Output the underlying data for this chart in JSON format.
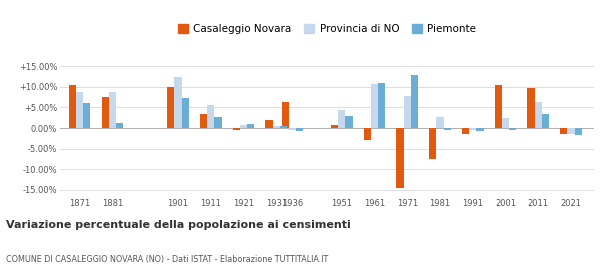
{
  "years": [
    1871,
    1881,
    1901,
    1911,
    1921,
    1931,
    1936,
    1951,
    1961,
    1971,
    1981,
    1991,
    2001,
    2011,
    2021
  ],
  "casaleggio": [
    10.5,
    7.5,
    10.0,
    3.5,
    -0.5,
    2.0,
    6.3,
    0.7,
    -3.0,
    -14.5,
    -7.5,
    -1.5,
    10.5,
    9.8,
    -1.5
  ],
  "provincia": [
    8.8,
    8.8,
    12.5,
    5.7,
    0.8,
    0.5,
    -0.5,
    4.4,
    10.8,
    7.8,
    2.8,
    -0.5,
    2.5,
    6.3,
    -1.5
  ],
  "piemonte": [
    6.0,
    1.2,
    7.3,
    2.8,
    1.0,
    0.5,
    -0.7,
    2.9,
    11.0,
    13.0,
    -0.5,
    -0.7,
    -0.5,
    3.3,
    -1.8
  ],
  "color_casaleggio": "#E05A10",
  "color_provincia": "#C5D8EC",
  "color_piemonte": "#6aaed6",
  "yticks": [
    -15.0,
    -10.0,
    -5.0,
    0.0,
    5.0,
    10.0,
    15.0
  ],
  "ytick_labels": [
    "-15.00%",
    "-10.00%",
    "-5.00%",
    "0.00%",
    "+5.00%",
    "+10.00%",
    "+15.00%"
  ],
  "title": "Variazione percentuale della popolazione ai censimenti",
  "subtitle": "COMUNE DI CASALEGGIO NOVARA (NO) - Dati ISTAT - Elaborazione TUTTITALIA.IT",
  "legend_labels": [
    "Casaleggio Novara",
    "Provincia di NO",
    "Piemonte"
  ],
  "background_color": "#ffffff",
  "grid_color": "#dddddd"
}
